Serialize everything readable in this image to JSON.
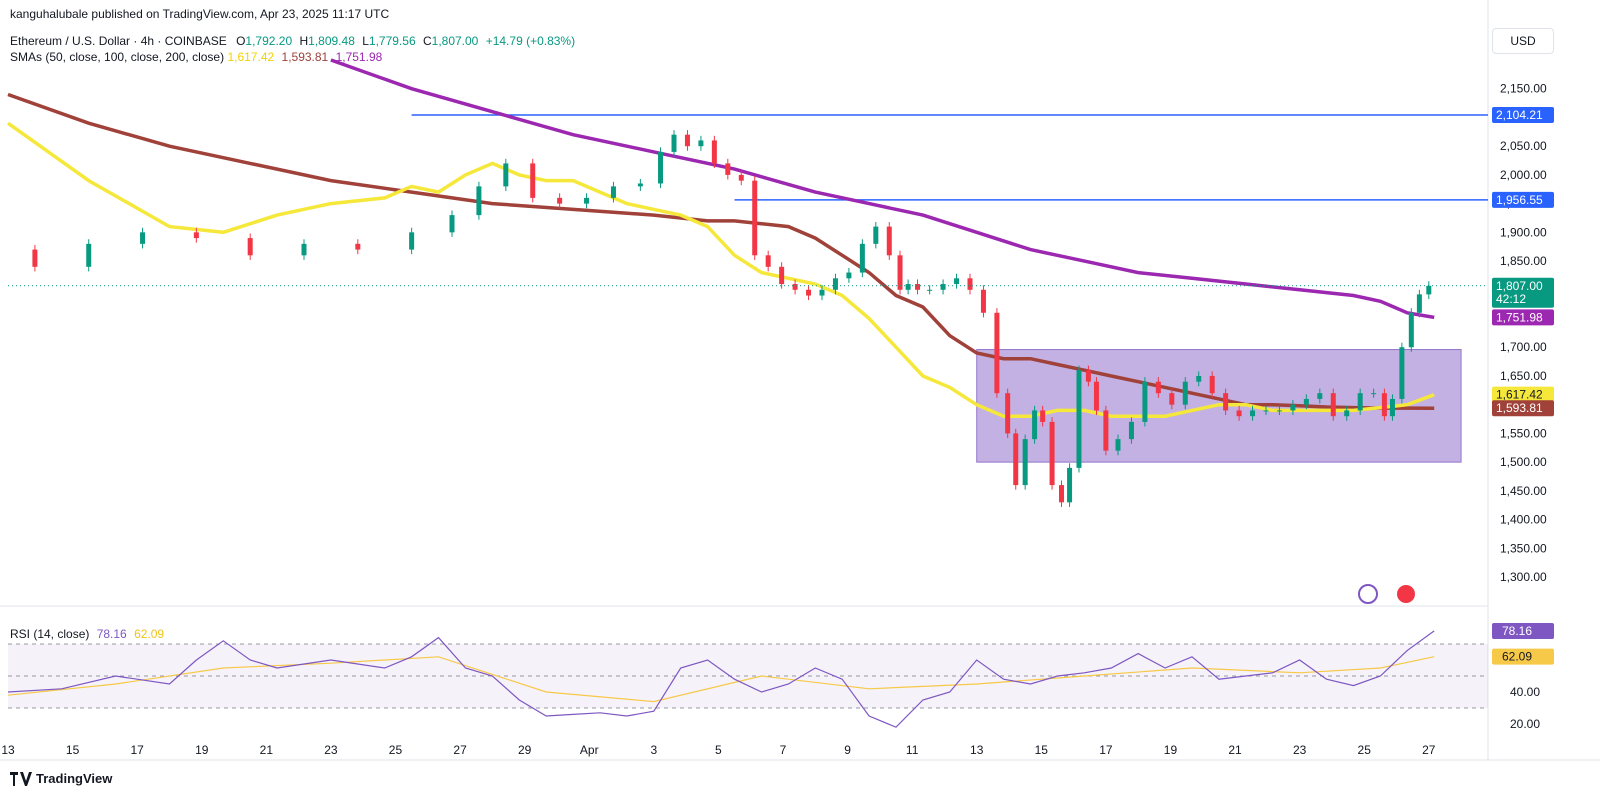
{
  "publisher_line": "kanguhalubale published on TradingView.com, Apr 23, 2025 11:17 UTC",
  "legend": {
    "symbol": "Ethereum / U.S. Dollar · 4h · COINBASE",
    "o_label": "O",
    "o": "1,792.20",
    "h_label": "H",
    "h": "1,809.48",
    "l_label": "L",
    "l": "1,779.56",
    "c_label": "C",
    "c": "1,807.00",
    "change": "+14.79 (+0.83%)",
    "sma_label": "SMAs (50, close, 100, close, 200, close)",
    "sma50": "1,617.42",
    "sma100": "1,593.81",
    "sma200": "1,751.98"
  },
  "rsi_legend": {
    "label": "RSI (14, close)",
    "rsi": "78.16",
    "ma": "62.09"
  },
  "currency_button": "USD",
  "brand": "TradingView",
  "colors": {
    "up": "#089981",
    "down": "#f23645",
    "sma50": "#f5e83b",
    "sma100": "#a0413a",
    "sma200": "#9c27b0",
    "hline": "#2962ff",
    "box": "#b39ddb",
    "rsi": "#7e57c2",
    "rsi_ma": "#f7c948"
  },
  "chart_data": {
    "type": "candlestick",
    "title": "Ethereum / U.S. Dollar · 4h · COINBASE",
    "ylim": [
      1260,
      2200
    ],
    "y_ticks": [
      "2,150.00",
      "2,100.00",
      "2,050.00",
      "2,000.00",
      "1,950.00",
      "1,900.00",
      "1,850.00",
      "1,800.00",
      "1,750.00",
      "1,700.00",
      "1,650.00",
      "1,600.00",
      "1,550.00",
      "1,500.00",
      "1,450.00",
      "1,400.00",
      "1,350.00",
      "1,300.00"
    ],
    "x_ticks": [
      "13",
      "15",
      "17",
      "19",
      "21",
      "23",
      "25",
      "27",
      "29",
      "Apr",
      "3",
      "5",
      "7",
      "9",
      "11",
      "13",
      "15",
      "17",
      "19",
      "21",
      "23",
      "25",
      "27"
    ],
    "price_path": [
      [
        0,
        1870
      ],
      [
        2,
        1840
      ],
      [
        4,
        1880
      ],
      [
        6,
        1900
      ],
      [
        8,
        1890
      ],
      [
        10,
        1860
      ],
      [
        12,
        1880
      ],
      [
        14,
        1870
      ],
      [
        16,
        1900
      ],
      [
        17,
        1930
      ],
      [
        18,
        1980
      ],
      [
        19,
        2020
      ],
      [
        20,
        1960
      ],
      [
        21,
        1950
      ],
      [
        22,
        1960
      ],
      [
        23,
        1980
      ],
      [
        24,
        1985
      ],
      [
        24.5,
        2040
      ],
      [
        25,
        2070
      ],
      [
        25.5,
        2050
      ],
      [
        26,
        2060
      ],
      [
        26.5,
        2020
      ],
      [
        27,
        2000
      ],
      [
        27.5,
        1990
      ],
      [
        28,
        1860
      ],
      [
        28.5,
        1840
      ],
      [
        29,
        1810
      ],
      [
        29.5,
        1800
      ],
      [
        30,
        1790
      ],
      [
        30.5,
        1800
      ],
      [
        31,
        1820
      ],
      [
        31.5,
        1830
      ],
      [
        32,
        1880
      ],
      [
        32.5,
        1910
      ],
      [
        33,
        1860
      ],
      [
        33.3,
        1800
      ],
      [
        33.6,
        1810
      ],
      [
        34,
        1800
      ],
      [
        34.5,
        1800
      ],
      [
        35,
        1810
      ],
      [
        35.5,
        1820
      ],
      [
        36,
        1800
      ],
      [
        36.5,
        1760
      ],
      [
        37,
        1620
      ],
      [
        37.3,
        1550
      ],
      [
        37.6,
        1460
      ],
      [
        38,
        1540
      ],
      [
        38.3,
        1590
      ],
      [
        38.6,
        1570
      ],
      [
        39,
        1460
      ],
      [
        39.3,
        1430
      ],
      [
        39.6,
        1490
      ],
      [
        40,
        1660
      ],
      [
        40.3,
        1640
      ],
      [
        40.6,
        1590
      ],
      [
        41,
        1520
      ],
      [
        41.5,
        1540
      ],
      [
        42,
        1570
      ],
      [
        42.5,
        1640
      ],
      [
        43,
        1620
      ],
      [
        43.5,
        1600
      ],
      [
        44,
        1640
      ],
      [
        44.5,
        1650
      ],
      [
        45,
        1620
      ],
      [
        45.5,
        1590
      ],
      [
        46,
        1580
      ],
      [
        46.5,
        1590
      ],
      [
        47,
        1590
      ],
      [
        47.5,
        1590
      ],
      [
        48,
        1600
      ],
      [
        48.5,
        1610
      ],
      [
        49,
        1620
      ],
      [
        49.5,
        1580
      ],
      [
        50,
        1590
      ],
      [
        50.5,
        1620
      ],
      [
        51,
        1620
      ],
      [
        51.3,
        1580
      ],
      [
        51.6,
        1610
      ],
      [
        52,
        1700
      ],
      [
        52.3,
        1760
      ],
      [
        52.6,
        1792
      ],
      [
        53,
        1807
      ]
    ],
    "sma50_path": [
      [
        0,
        2090
      ],
      [
        3,
        1990
      ],
      [
        6,
        1910
      ],
      [
        8,
        1900
      ],
      [
        10,
        1930
      ],
      [
        12,
        1950
      ],
      [
        14,
        1960
      ],
      [
        15,
        1980
      ],
      [
        16,
        1970
      ],
      [
        17,
        2000
      ],
      [
        18,
        2020
      ],
      [
        19,
        2000
      ],
      [
        20,
        1990
      ],
      [
        21,
        1990
      ],
      [
        22,
        1970
      ],
      [
        23,
        1950
      ],
      [
        24,
        1940
      ],
      [
        25,
        1930
      ],
      [
        26,
        1910
      ],
      [
        27,
        1860
      ],
      [
        28,
        1830
      ],
      [
        29,
        1820
      ],
      [
        30,
        1810
      ],
      [
        31,
        1790
      ],
      [
        32,
        1750
      ],
      [
        33,
        1700
      ],
      [
        34,
        1650
      ],
      [
        35,
        1630
      ],
      [
        36,
        1600
      ],
      [
        37,
        1580
      ],
      [
        38,
        1580
      ],
      [
        39,
        1590
      ],
      [
        40,
        1590
      ],
      [
        41,
        1580
      ],
      [
        42,
        1580
      ],
      [
        43,
        1580
      ],
      [
        44,
        1590
      ],
      [
        45,
        1600
      ],
      [
        46,
        1600
      ],
      [
        47,
        1590
      ],
      [
        48,
        1590
      ],
      [
        49,
        1590
      ],
      [
        50,
        1590
      ],
      [
        51,
        1595
      ],
      [
        52,
        1600
      ],
      [
        53,
        1617.42
      ]
    ],
    "sma100_path": [
      [
        0,
        2140
      ],
      [
        3,
        2090
      ],
      [
        6,
        2050
      ],
      [
        9,
        2020
      ],
      [
        12,
        1990
      ],
      [
        15,
        1970
      ],
      [
        18,
        1950
      ],
      [
        21,
        1940
      ],
      [
        24,
        1930
      ],
      [
        26,
        1920
      ],
      [
        27,
        1920
      ],
      [
        28,
        1915
      ],
      [
        29,
        1910
      ],
      [
        30,
        1890
      ],
      [
        31,
        1860
      ],
      [
        32,
        1830
      ],
      [
        33,
        1790
      ],
      [
        34,
        1770
      ],
      [
        35,
        1720
      ],
      [
        36,
        1690
      ],
      [
        37,
        1680
      ],
      [
        38,
        1680
      ],
      [
        39,
        1670
      ],
      [
        40,
        1660
      ],
      [
        41,
        1650
      ],
      [
        42,
        1640
      ],
      [
        43,
        1630
      ],
      [
        44,
        1620
      ],
      [
        45,
        1610
      ],
      [
        46,
        1600
      ],
      [
        47,
        1600
      ],
      [
        48,
        1598
      ],
      [
        49,
        1596
      ],
      [
        50,
        1595
      ],
      [
        51,
        1594
      ],
      [
        52,
        1594
      ],
      [
        53,
        1593.81
      ]
    ],
    "sma200_path": [
      [
        12,
        2200
      ],
      [
        15,
        2150
      ],
      [
        18,
        2110
      ],
      [
        21,
        2070
      ],
      [
        24,
        2040
      ],
      [
        27,
        2010
      ],
      [
        30,
        1970
      ],
      [
        32,
        1950
      ],
      [
        34,
        1930
      ],
      [
        36,
        1900
      ],
      [
        38,
        1870
      ],
      [
        40,
        1850
      ],
      [
        42,
        1830
      ],
      [
        44,
        1820
      ],
      [
        46,
        1810
      ],
      [
        48,
        1800
      ],
      [
        50,
        1790
      ],
      [
        51,
        1780
      ],
      [
        52,
        1760
      ],
      [
        53,
        1751.98
      ]
    ],
    "price_last": {
      "value": "1,807.00",
      "countdown": "42:12"
    },
    "sma_tags": [
      {
        "value": "1,751.98",
        "color": "#9c27b0",
        "y": 1751.98
      },
      {
        "value": "1,617.42",
        "color": "#f5e83b",
        "y": 1617.42
      },
      {
        "value": "1,593.81",
        "color": "#a0413a",
        "y": 1593.81
      }
    ],
    "hlines": [
      {
        "value": "2,104.21",
        "y": 2104.21,
        "x_start": 15
      },
      {
        "value": "1,956.55",
        "y": 1956.55,
        "x_start": 27
      }
    ],
    "range_box": {
      "x_start": 36,
      "x_end": 54,
      "y_low": 1500,
      "y_high": 1696
    },
    "rsi": {
      "ylim": [
        10,
        90
      ],
      "y_ticks": [
        "40.00",
        "20.00"
      ],
      "overbought": 70,
      "oversold": 30,
      "mid": 50,
      "rsi_path": [
        [
          0,
          40
        ],
        [
          2,
          42
        ],
        [
          4,
          50
        ],
        [
          6,
          45
        ],
        [
          7,
          60
        ],
        [
          8,
          72
        ],
        [
          9,
          60
        ],
        [
          10,
          55
        ],
        [
          12,
          60
        ],
        [
          14,
          55
        ],
        [
          15,
          62
        ],
        [
          16,
          74
        ],
        [
          17,
          55
        ],
        [
          18,
          50
        ],
        [
          19,
          35
        ],
        [
          20,
          25
        ],
        [
          21,
          26
        ],
        [
          22,
          27
        ],
        [
          23,
          25
        ],
        [
          24,
          28
        ],
        [
          25,
          55
        ],
        [
          26,
          60
        ],
        [
          27,
          48
        ],
        [
          28,
          40
        ],
        [
          29,
          45
        ],
        [
          30,
          55
        ],
        [
          31,
          48
        ],
        [
          32,
          25
        ],
        [
          33,
          18
        ],
        [
          34,
          35
        ],
        [
          35,
          40
        ],
        [
          36,
          60
        ],
        [
          37,
          48
        ],
        [
          38,
          45
        ],
        [
          39,
          50
        ],
        [
          40,
          52
        ],
        [
          41,
          55
        ],
        [
          42,
          64
        ],
        [
          43,
          55
        ],
        [
          44,
          62
        ],
        [
          45,
          48
        ],
        [
          46,
          50
        ],
        [
          47,
          52
        ],
        [
          48,
          60
        ],
        [
          49,
          48
        ],
        [
          50,
          44
        ],
        [
          51,
          50
        ],
        [
          52,
          66
        ],
        [
          53,
          78.16
        ]
      ],
      "ma_path": [
        [
          0,
          38
        ],
        [
          4,
          45
        ],
        [
          8,
          55
        ],
        [
          12,
          58
        ],
        [
          16,
          62
        ],
        [
          20,
          40
        ],
        [
          24,
          34
        ],
        [
          28,
          50
        ],
        [
          32,
          42
        ],
        [
          36,
          45
        ],
        [
          40,
          50
        ],
        [
          44,
          55
        ],
        [
          48,
          52
        ],
        [
          51,
          55
        ],
        [
          53,
          62.09
        ]
      ],
      "rsi_tag": "78.16",
      "ma_tag": "62.09"
    }
  }
}
